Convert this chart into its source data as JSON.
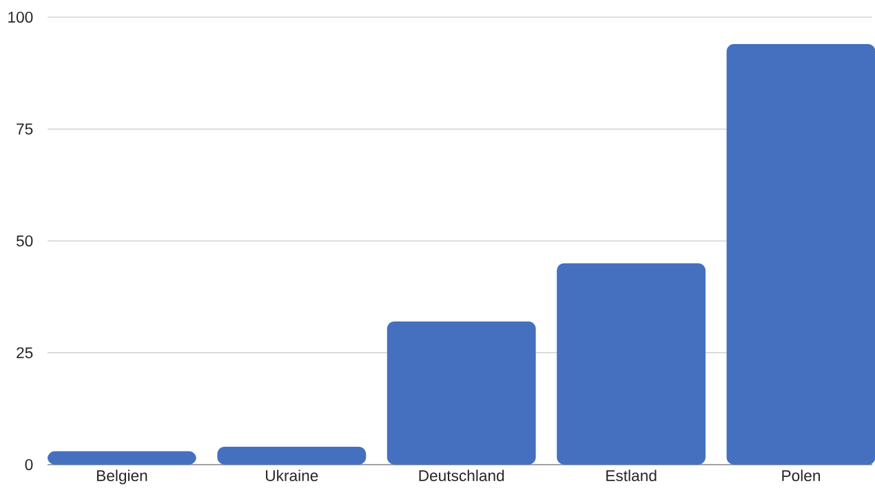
{
  "chart_data": {
    "type": "bar",
    "categories": [
      "Belgien",
      "Ukraine",
      "Deutschland",
      "Estland",
      "Polen"
    ],
    "values": [
      3,
      4,
      32,
      45,
      94
    ],
    "color": "#4470bf",
    "ylim": [
      0,
      100
    ],
    "yticks": [
      0,
      25,
      50,
      75,
      100
    ],
    "grid": "y"
  }
}
